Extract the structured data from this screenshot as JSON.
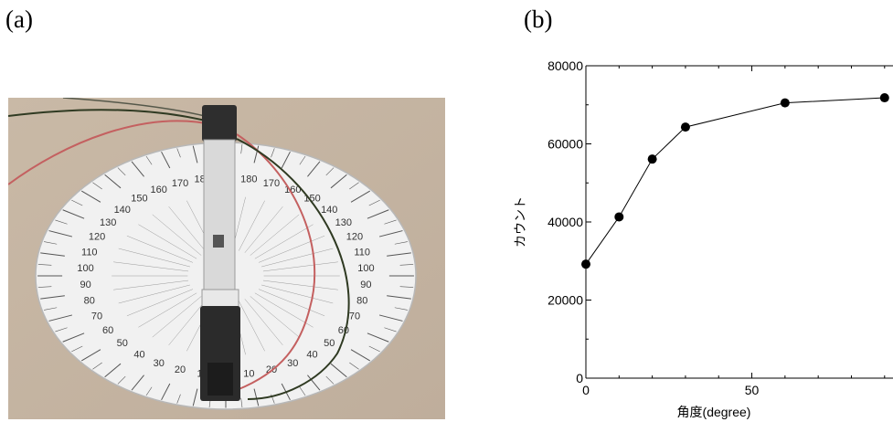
{
  "panels": {
    "a_label": "(a)",
    "b_label": "(b)"
  },
  "photo": {
    "protractor_numbers": [
      "10",
      "20",
      "30",
      "40",
      "50",
      "60",
      "70",
      "80",
      "90",
      "100",
      "110",
      "120",
      "130",
      "140",
      "150",
      "160",
      "170",
      "180"
    ],
    "colors": {
      "background": "#c8b8a8",
      "protractor": "#f2f2f2",
      "detector": "#dcdcdc",
      "cap": "#2c2c2c",
      "wire_red": "#c05050",
      "wire_dark": "#303a20"
    }
  },
  "chart_data": {
    "type": "line",
    "xlabel": "角度(degree)",
    "ylabel": "カウント",
    "x": [
      0,
      10,
      20,
      30,
      60,
      90
    ],
    "y": [
      29200,
      41300,
      56100,
      64300,
      70500,
      71800
    ],
    "xlim": [
      0,
      90
    ],
    "ylim": [
      0,
      80000
    ],
    "xticks": [
      "0",
      "50"
    ],
    "yticks": [
      "0",
      "20000",
      "40000",
      "60000",
      "80000"
    ],
    "grid": false,
    "marker": "filled-circle",
    "line_color": "#000000"
  }
}
